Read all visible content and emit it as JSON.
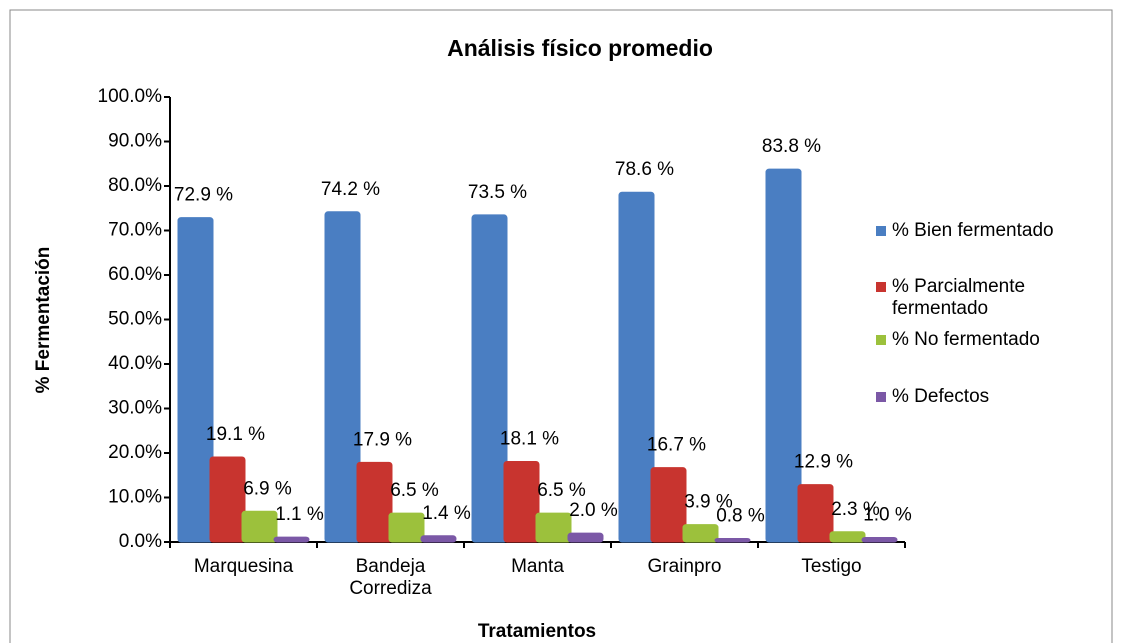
{
  "chart_data": {
    "type": "bar",
    "title": "Análisis físico promedio",
    "y_label": "% Fermentación",
    "x_label": "Tratamientos",
    "categories": [
      "Marquesina",
      "Bandeja Corrediza",
      "Manta",
      "Grainpro",
      "Testigo"
    ],
    "series": [
      {
        "name": "% Bien fermentado",
        "color": "#4a7ec2",
        "values": [
          72.9,
          74.2,
          73.5,
          78.6,
          83.8
        ],
        "value_labels": [
          "72.9 %",
          "74.2 %",
          "73.5 %",
          "78.6 %",
          "83.8 %"
        ]
      },
      {
        "name": "% Parcialmente fermentado",
        "color": "#c8342f",
        "values": [
          19.1,
          17.9,
          18.1,
          16.7,
          12.9
        ],
        "value_labels": [
          "19.1 %",
          "17.9 %",
          "18.1 %",
          "16.7 %",
          "12.9 %"
        ]
      },
      {
        "name": "% No fermentado",
        "color": "#9cc13c",
        "values": [
          6.9,
          6.5,
          6.5,
          3.9,
          2.3
        ],
        "value_labels": [
          "6.9 %",
          "6.5 %",
          "6.5 %",
          "3.9 %",
          "2.3 %"
        ]
      },
      {
        "name": "% Defectos",
        "color": "#7b58a6",
        "values": [
          1.1,
          1.4,
          2.0,
          0.8,
          1.0
        ],
        "value_labels": [
          "1.1 %",
          "1.4 %",
          "2.0 %",
          "0.8 %",
          "1.0 %"
        ]
      }
    ],
    "ylim": [
      0,
      100
    ],
    "yticks": [
      {
        "value": 0,
        "label": "0.0%"
      },
      {
        "value": 10,
        "label": "10.0%"
      },
      {
        "value": 20,
        "label": "20.0%"
      },
      {
        "value": 30,
        "label": "30.0%"
      },
      {
        "value": 40,
        "label": "40.0%"
      },
      {
        "value": 50,
        "label": "50.0%"
      },
      {
        "value": 60,
        "label": "60.0%"
      },
      {
        "value": 70,
        "label": "70.0%"
      },
      {
        "value": 80,
        "label": "80.0%"
      },
      {
        "value": 90,
        "label": "90.0%"
      },
      {
        "value": 100,
        "label": "100.0%"
      }
    ],
    "grid": false,
    "legend": "right"
  }
}
